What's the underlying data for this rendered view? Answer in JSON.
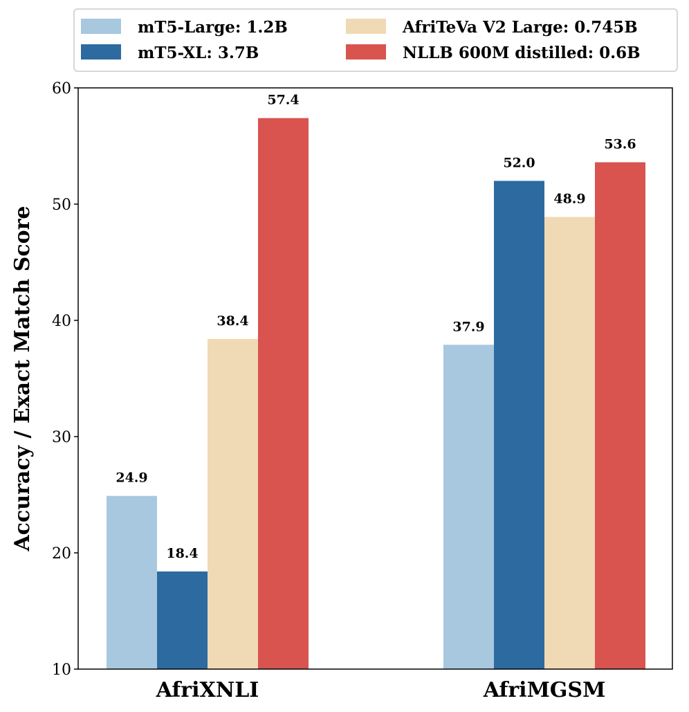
{
  "chart_data": {
    "type": "bar",
    "categories": [
      "AfriXNLI",
      "AfriMGSM"
    ],
    "series": [
      {
        "name": "mT5-Large: 1.2B",
        "color": "#a8c8e0",
        "values": [
          24.9,
          37.9
        ],
        "labels": [
          "24.9",
          "37.9"
        ]
      },
      {
        "name": "mT5-XL: 3.7B",
        "color": "#2c6aa0",
        "values": [
          18.4,
          52.0
        ],
        "labels": [
          "18.4",
          "52.0"
        ]
      },
      {
        "name": "AfriTeVa V2 Large: 0.745B",
        "color": "#f0d9b5",
        "values": [
          38.4,
          48.9
        ],
        "labels": [
          "38.4",
          "48.9"
        ]
      },
      {
        "name": "NLLB 600M distilled: 0.6B",
        "color": "#d9534f",
        "values": [
          57.4,
          53.6
        ],
        "labels": [
          "57.4",
          "53.6"
        ]
      }
    ],
    "title": "",
    "xlabel": "",
    "ylabel": "Accuracy / Exact Match Score",
    "ylim": [
      10,
      60
    ],
    "yticks": [
      "10",
      "20",
      "30",
      "40",
      "50",
      "60"
    ],
    "grid": false,
    "legend_position": "top"
  }
}
